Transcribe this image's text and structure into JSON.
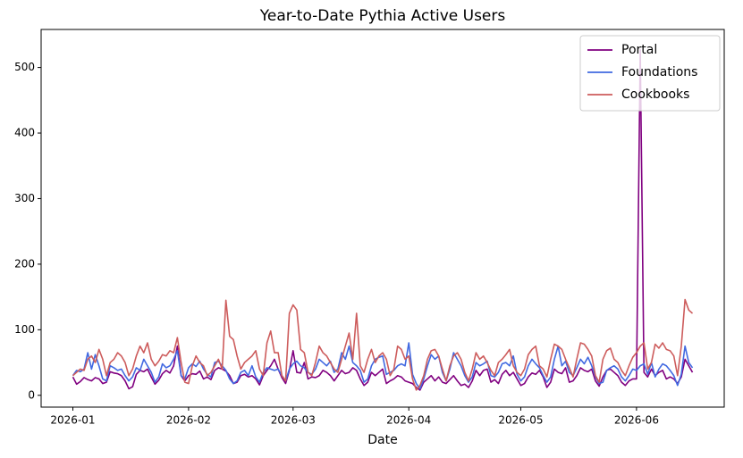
{
  "chart_data": {
    "type": "line",
    "title": "Year-to-Date Pythia Active Users",
    "x_label": "Date",
    "x": [
      0,
      1,
      2,
      3,
      4,
      5,
      6,
      7,
      8,
      9,
      10,
      11,
      12,
      13,
      14,
      15,
      16,
      17,
      18,
      19,
      20,
      21,
      22,
      23,
      24,
      25,
      26,
      27,
      28,
      29,
      30,
      31,
      32,
      33,
      34,
      35,
      36,
      37,
      38,
      39,
      40,
      41,
      42,
      43,
      44,
      45,
      46,
      47,
      48,
      49,
      50,
      51,
      52,
      53,
      54,
      55,
      56,
      57,
      58,
      59,
      60,
      61,
      62,
      63,
      64,
      65,
      66,
      67,
      68,
      69,
      70,
      71,
      72,
      73,
      74,
      75,
      76,
      77,
      78,
      79,
      80,
      81,
      82,
      83,
      84,
      85,
      86,
      87,
      88,
      89,
      90,
      91,
      92,
      93,
      94,
      95,
      96,
      97,
      98,
      99,
      100,
      101,
      102,
      103,
      104,
      105,
      106,
      107,
      108,
      109,
      110,
      111,
      112,
      113,
      114,
      115,
      116,
      117,
      118,
      119,
      120,
      121,
      122,
      123,
      124,
      125,
      126,
      127,
      128,
      129,
      130,
      131,
      132,
      133,
      134,
      135,
      136,
      137,
      138,
      139,
      140,
      141,
      142,
      143,
      144,
      145,
      146,
      147,
      148,
      149,
      150,
      151,
      152,
      153,
      154,
      155,
      156,
      157,
      158,
      159,
      160,
      161,
      162,
      163,
      164,
      165,
      166
    ],
    "series": [
      {
        "name": "Portal",
        "color": "#800080",
        "values": [
          28,
          17,
          21,
          27,
          24,
          22,
          27,
          25,
          18,
          20,
          36,
          34,
          33,
          30,
          22,
          10,
          13,
          32,
          38,
          36,
          40,
          28,
          17,
          23,
          33,
          38,
          34,
          45,
          75,
          30,
          22,
          30,
          33,
          32,
          37,
          25,
          28,
          24,
          38,
          42,
          40,
          37,
          30,
          18,
          20,
          30,
          32,
          28,
          30,
          25,
          16,
          30,
          38,
          45,
          55,
          40,
          27,
          18,
          38,
          68,
          35,
          34,
          50,
          25,
          28,
          27,
          30,
          38,
          35,
          30,
          22,
          30,
          38,
          33,
          35,
          42,
          38,
          25,
          15,
          20,
          35,
          30,
          35,
          40,
          18,
          22,
          25,
          30,
          28,
          22,
          20,
          18,
          12,
          8,
          20,
          25,
          30,
          22,
          28,
          20,
          18,
          24,
          30,
          22,
          15,
          17,
          12,
          22,
          38,
          30,
          38,
          40,
          20,
          24,
          18,
          32,
          38,
          30,
          35,
          25,
          15,
          18,
          28,
          34,
          32,
          38,
          28,
          12,
          20,
          40,
          35,
          33,
          42,
          20,
          22,
          30,
          42,
          38,
          36,
          40,
          22,
          14,
          28,
          38,
          40,
          35,
          30,
          20,
          15,
          22,
          25,
          25,
          527,
          35,
          28,
          40,
          30,
          35,
          38,
          25,
          28,
          25,
          18,
          28,
          55,
          45,
          35
        ]
      },
      {
        "name": "Foundations",
        "color": "#4169e1",
        "values": [
          30,
          38,
          36,
          40,
          65,
          40,
          62,
          45,
          25,
          22,
          45,
          42,
          38,
          40,
          30,
          22,
          28,
          42,
          38,
          55,
          45,
          35,
          20,
          28,
          48,
          42,
          45,
          55,
          68,
          30,
          25,
          42,
          48,
          44,
          52,
          40,
          32,
          28,
          50,
          52,
          45,
          38,
          25,
          18,
          22,
          35,
          38,
          30,
          45,
          28,
          20,
          35,
          42,
          40,
          38,
          40,
          30,
          22,
          40,
          48,
          52,
          45,
          42,
          35,
          32,
          40,
          55,
          50,
          45,
          52,
          35,
          40,
          65,
          55,
          75,
          50,
          45,
          38,
          20,
          25,
          45,
          55,
          58,
          60,
          32,
          35,
          38,
          45,
          48,
          45,
          80,
          32,
          18,
          10,
          25,
          45,
          62,
          55,
          60,
          35,
          22,
          40,
          65,
          55,
          45,
          30,
          20,
          28,
          50,
          45,
          48,
          52,
          30,
          28,
          35,
          48,
          50,
          45,
          60,
          32,
          22,
          28,
          45,
          55,
          48,
          42,
          30,
          20,
          28,
          55,
          75,
          45,
          52,
          35,
          30,
          42,
          55,
          48,
          58,
          45,
          28,
          18,
          20,
          38,
          42,
          45,
          40,
          28,
          22,
          30,
          40,
          38,
          45,
          48,
          32,
          50,
          28,
          40,
          48,
          45,
          38,
          30,
          15,
          32,
          75,
          50,
          42
        ]
      },
      {
        "name": "Cookbooks",
        "color": "#cd5c5c",
        "values": [
          30,
          35,
          40,
          38,
          55,
          60,
          50,
          70,
          55,
          30,
          50,
          55,
          65,
          60,
          50,
          30,
          40,
          60,
          75,
          65,
          80,
          55,
          45,
          52,
          62,
          60,
          68,
          65,
          88,
          50,
          20,
          18,
          45,
          60,
          50,
          45,
          30,
          35,
          45,
          55,
          40,
          145,
          90,
          85,
          60,
          40,
          50,
          55,
          60,
          68,
          40,
          30,
          80,
          98,
          65,
          65,
          30,
          22,
          125,
          138,
          130,
          70,
          65,
          35,
          30,
          50,
          75,
          65,
          60,
          50,
          40,
          35,
          55,
          75,
          95,
          55,
          125,
          45,
          35,
          55,
          70,
          50,
          60,
          65,
          55,
          30,
          40,
          75,
          70,
          55,
          60,
          25,
          8,
          15,
          30,
          55,
          68,
          70,
          60,
          40,
          22,
          45,
          60,
          65,
          55,
          35,
          22,
          40,
          65,
          55,
          60,
          50,
          38,
          30,
          50,
          55,
          62,
          70,
          45,
          35,
          30,
          40,
          62,
          70,
          75,
          45,
          40,
          28,
          55,
          78,
          75,
          70,
          55,
          42,
          28,
          55,
          80,
          78,
          70,
          60,
          30,
          20,
          55,
          68,
          72,
          55,
          50,
          38,
          30,
          45,
          58,
          65,
          75,
          80,
          40,
          50,
          78,
          72,
          80,
          70,
          68,
          60,
          30,
          75,
          146,
          130,
          125
        ]
      }
    ],
    "xlim": [
      -8.5,
      174.5
    ],
    "xticks": [
      {
        "value": 0,
        "label": "2026-01"
      },
      {
        "value": 31,
        "label": "2026-02"
      },
      {
        "value": 59,
        "label": "2026-03"
      },
      {
        "value": 90,
        "label": "2026-04"
      },
      {
        "value": 120,
        "label": "2026-05"
      },
      {
        "value": 151,
        "label": "2026-06"
      }
    ],
    "ylim": [
      -18,
      558
    ],
    "yticks": [
      0,
      100,
      200,
      300,
      400,
      500
    ],
    "grid": false,
    "legend": "upper right"
  }
}
